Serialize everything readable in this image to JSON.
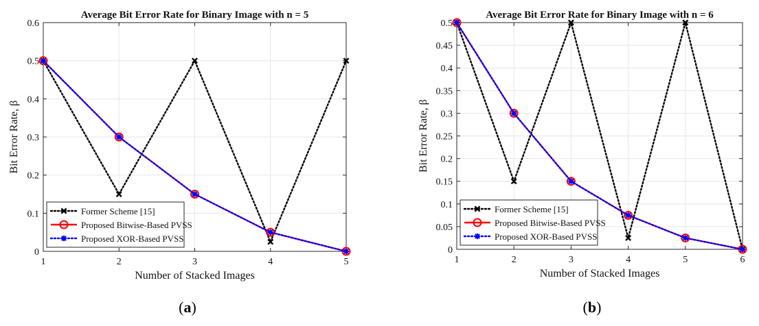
{
  "chart_data": [
    {
      "type": "line",
      "title": "Average Bit Error Rate for Binary Image with n = 5",
      "xlabel": "Number of Stacked Images",
      "ylabel": "Bit Error Rate, β",
      "xlim": [
        1,
        5
      ],
      "ylim": [
        0,
        0.6
      ],
      "xticks": [
        "1",
        "2",
        "3",
        "4",
        "5"
      ],
      "yticks": [
        "0",
        "0.1",
        "0.2",
        "0.3",
        "0.4",
        "0.5",
        "0.6"
      ],
      "grid": true,
      "legend_position": "bottom-left",
      "x": [
        1,
        2,
        3,
        4,
        5
      ],
      "series": [
        {
          "name": "Former Scheme [15]",
          "values": [
            0.5,
            0.15,
            0.5,
            0.025,
            0.5
          ],
          "color": "#000000",
          "style": "dotted",
          "marker": "x"
        },
        {
          "name": "Proposed Bitwise-Based PVSS",
          "values": [
            0.5,
            0.3,
            0.15,
            0.05,
            0.0
          ],
          "color": "#ff0000",
          "style": "solid",
          "marker": "o"
        },
        {
          "name": "Proposed XOR-Based PVSS",
          "values": [
            0.5,
            0.3,
            0.15,
            0.05,
            0.0
          ],
          "color": "#0000ff",
          "style": "dotted",
          "marker": "*"
        }
      ],
      "caption": "a"
    },
    {
      "type": "line",
      "title": "Average Bit Error Rate for Binary Image with n = 6",
      "xlabel": "Number of Stacked Images",
      "ylabel": "Bit Error Rate, β",
      "xlim": [
        1,
        6
      ],
      "ylim": [
        0,
        0.5
      ],
      "xticks": [
        "1",
        "2",
        "3",
        "4",
        "5",
        "6"
      ],
      "yticks": [
        "0",
        "0.05",
        "0.1",
        "0.15",
        "0.2",
        "0.25",
        "0.3",
        "0.35",
        "0.4",
        "0.45",
        "0.5"
      ],
      "grid": true,
      "legend_position": "bottom-left",
      "x": [
        1,
        2,
        3,
        4,
        5,
        6
      ],
      "series": [
        {
          "name": "Former Scheme [15]",
          "values": [
            0.5,
            0.15,
            0.5,
            0.025,
            0.5,
            0.0
          ],
          "color": "#000000",
          "style": "dotted",
          "marker": "x"
        },
        {
          "name": "Proposed Bitwise-Based PVSS",
          "values": [
            0.5,
            0.3,
            0.15,
            0.075,
            0.025,
            0.0
          ],
          "color": "#ff0000",
          "style": "solid",
          "marker": "o"
        },
        {
          "name": "Proposed XOR-Based PVSS",
          "values": [
            0.5,
            0.3,
            0.15,
            0.075,
            0.025,
            0.0
          ],
          "color": "#0000ff",
          "style": "dotted",
          "marker": "*"
        }
      ],
      "caption": "b"
    }
  ]
}
